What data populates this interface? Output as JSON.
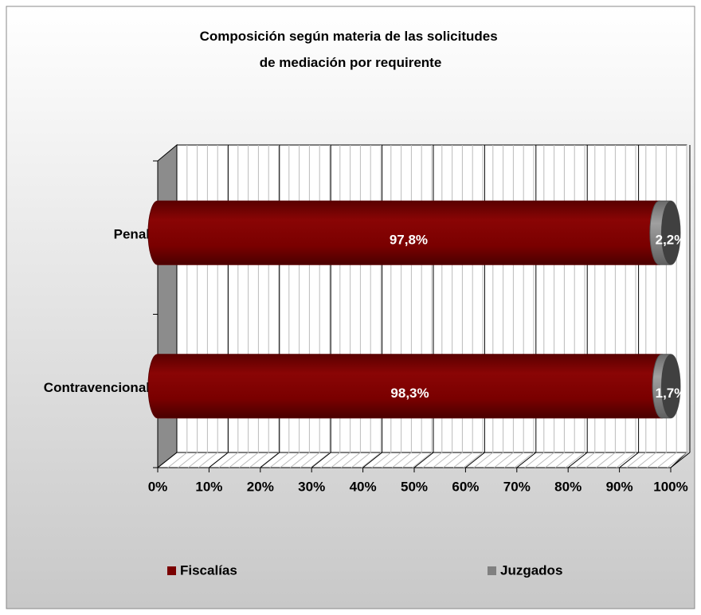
{
  "chart_data": {
    "type": "stacked-bar-horizontal",
    "title": "Composición según materia de las solicitudes de mediación por requirente",
    "categories": [
      "Penal",
      "Contravencional"
    ],
    "series": [
      {
        "name": "Fiscalías",
        "color": "#7a0000",
        "values": [
          97.8,
          98.3
        ],
        "value_labels": [
          "97,8%",
          "98,3%"
        ]
      },
      {
        "name": "Juzgados",
        "color": "#808080",
        "values": [
          2.2,
          1.7
        ],
        "value_labels": [
          "2,2%",
          "1,7%"
        ]
      }
    ],
    "xlim": [
      0,
      100
    ],
    "xticks": [
      {
        "value": 0,
        "label": "0%"
      },
      {
        "value": 10,
        "label": "10%"
      },
      {
        "value": 20,
        "label": "20%"
      },
      {
        "value": 30,
        "label": "30%"
      },
      {
        "value": 40,
        "label": "40%"
      },
      {
        "value": 50,
        "label": "50%"
      },
      {
        "value": 60,
        "label": "60%"
      },
      {
        "value": 70,
        "label": "70%"
      },
      {
        "value": 80,
        "label": "80%"
      },
      {
        "value": 90,
        "label": "90%"
      },
      {
        "value": 100,
        "label": "100%"
      }
    ],
    "grid": true,
    "legend": "bottom"
  }
}
